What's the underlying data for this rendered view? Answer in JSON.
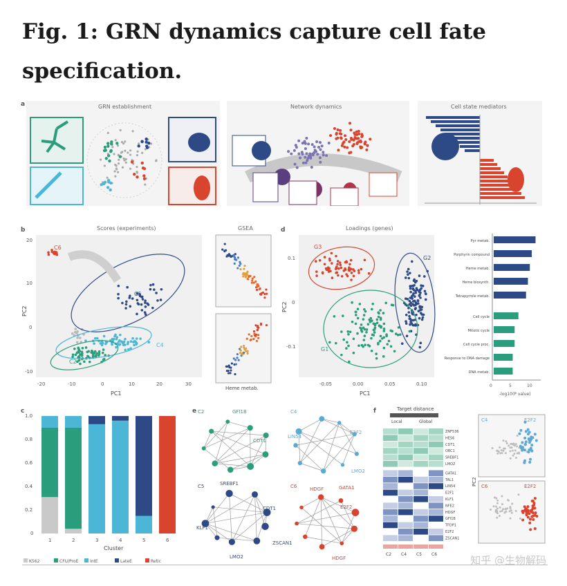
{
  "title": "Fig. 1: GRN dynamics capture cell fate specification.",
  "panels": {
    "a": {
      "letter": "a",
      "t1": "GRN establishment",
      "t2": "Network dynamics",
      "t3": "Cell state mediators"
    },
    "b": {
      "letter": "b",
      "title": "Scores (experiments)",
      "xlabel": "PC1",
      "ylabel": "PC2",
      "gsea": "GSEA",
      "heme": "Heme metab.",
      "clusters": [
        "C6",
        "C5",
        "C2",
        "C4"
      ],
      "xticks": [
        "-20",
        "-10",
        "0",
        "10",
        "20",
        "30"
      ],
      "yticks": [
        "20",
        "10",
        "0",
        "-10"
      ]
    },
    "d": {
      "letter": "d",
      "title": "Loadings (genes)",
      "xlabel": "PC1",
      "ylabel": "PC2",
      "groups": [
        "G3",
        "G2",
        "G1"
      ],
      "xticks": [
        "-0.05",
        "0.00",
        "0.05",
        "0.10"
      ],
      "yticks": [
        "0.1",
        "0",
        "-0.1"
      ],
      "terms": [
        "Pyr metab.",
        "Porphyrin compound",
        "Heme metab.",
        "Heme biosynth.",
        "Tetrapyrrole metab.",
        "Cell cycle",
        "Mitotic cycle",
        "Cell cycle proc.",
        "Response to DNA damage",
        "DNA metab."
      ],
      "bar_xlabel": "-log10(P value)",
      "bar_ticks": [
        "0",
        "5",
        "10"
      ]
    },
    "c": {
      "letter": "c",
      "xlabel": "Cluster",
      "categories": [
        "1",
        "2",
        "3",
        "4",
        "5",
        "6"
      ],
      "yticks": [
        "1.0",
        "0.8",
        "0.6",
        "0.4",
        "0.2",
        "0"
      ],
      "legend": [
        "K562",
        "CFU/ProE",
        "IntE",
        "LateE",
        "Retic"
      ]
    },
    "e": {
      "letter": "e",
      "labels": {
        "c2": "C2",
        "c4": "C4",
        "c5": "C5",
        "c6": "C6",
        "gfi1b": "GFI1B",
        "cdt1": "CDT1",
        "lin54": "LIN54",
        "e2f2": "E2F2",
        "lmo2a": "LMO2",
        "srebf1": "SREBF1",
        "cdt1b": "CDT1",
        "klf1": "KLF1",
        "zscan1": "ZSCAN1",
        "lmo2b": "LMO2",
        "gata1": "GATA1",
        "hdgf": "HDGF",
        "e2f2b": "E2F2",
        "hdgfb": "HDGF"
      }
    },
    "f": {
      "letter": "f",
      "title": "Target distance",
      "local": "Local",
      "global": "Global",
      "genes": [
        "ZNF536",
        "HES6",
        "CDT1",
        "ORC1",
        "SREBF1",
        "LMO2",
        "GATA1",
        "TAL1",
        "LIN54",
        "E2F1",
        "KLF1",
        "NFE2",
        "HDGF",
        "GFI1B",
        "TFDP1",
        "E2F2",
        "ZSCAN1"
      ],
      "cols": [
        "C2",
        "C4",
        "C5",
        "C6"
      ],
      "pca_c4": "C4",
      "pca_c6": "C6",
      "pca_ylabel": "PC2",
      "e2f2": "E2F2"
    }
  },
  "watermark": "知乎 @生物解码",
  "colors": {
    "navy": "#2e4a86",
    "red": "#d9442f",
    "green": "#2a9d7c",
    "teal": "#4bb6d6",
    "lightblue": "#5aa9d6",
    "grey": "#b8b8b8",
    "k562": "#c9c9c9"
  },
  "chart_data": [
    {
      "type": "bar",
      "panel": "c",
      "stacked": true,
      "categories": [
        "1",
        "2",
        "3",
        "4",
        "5",
        "6"
      ],
      "series": [
        {
          "name": "K562",
          "values": [
            0.31,
            0.04,
            0,
            0,
            0,
            0
          ]
        },
        {
          "name": "CFU/ProE",
          "values": [
            0.59,
            0.86,
            0,
            0,
            0,
            0
          ]
        },
        {
          "name": "IntE",
          "values": [
            0.1,
            0.1,
            0.93,
            0.96,
            0.15,
            0
          ]
        },
        {
          "name": "LateE",
          "values": [
            0,
            0,
            0.07,
            0.04,
            0.85,
            0
          ]
        },
        {
          "name": "Retic",
          "values": [
            0,
            0,
            0,
            0,
            0,
            1.0
          ]
        }
      ],
      "ylim": [
        0,
        1
      ],
      "xlabel": "Cluster"
    },
    {
      "type": "bar",
      "panel": "d-right",
      "orientation": "horizontal",
      "categories": [
        "Pyr metab.",
        "Porphyrin compound",
        "Heme metab.",
        "Heme biosynth.",
        "Tetrapyrrole metab.",
        "Cell cycle",
        "Mitotic cycle",
        "Cell cycle proc.",
        "Response to DNA damage",
        "DNA metab."
      ],
      "values": [
        11,
        10,
        9.5,
        9,
        8.5,
        6.5,
        5.5,
        5.5,
        5,
        5
      ],
      "xlabel": "-log10(P value)"
    }
  ]
}
